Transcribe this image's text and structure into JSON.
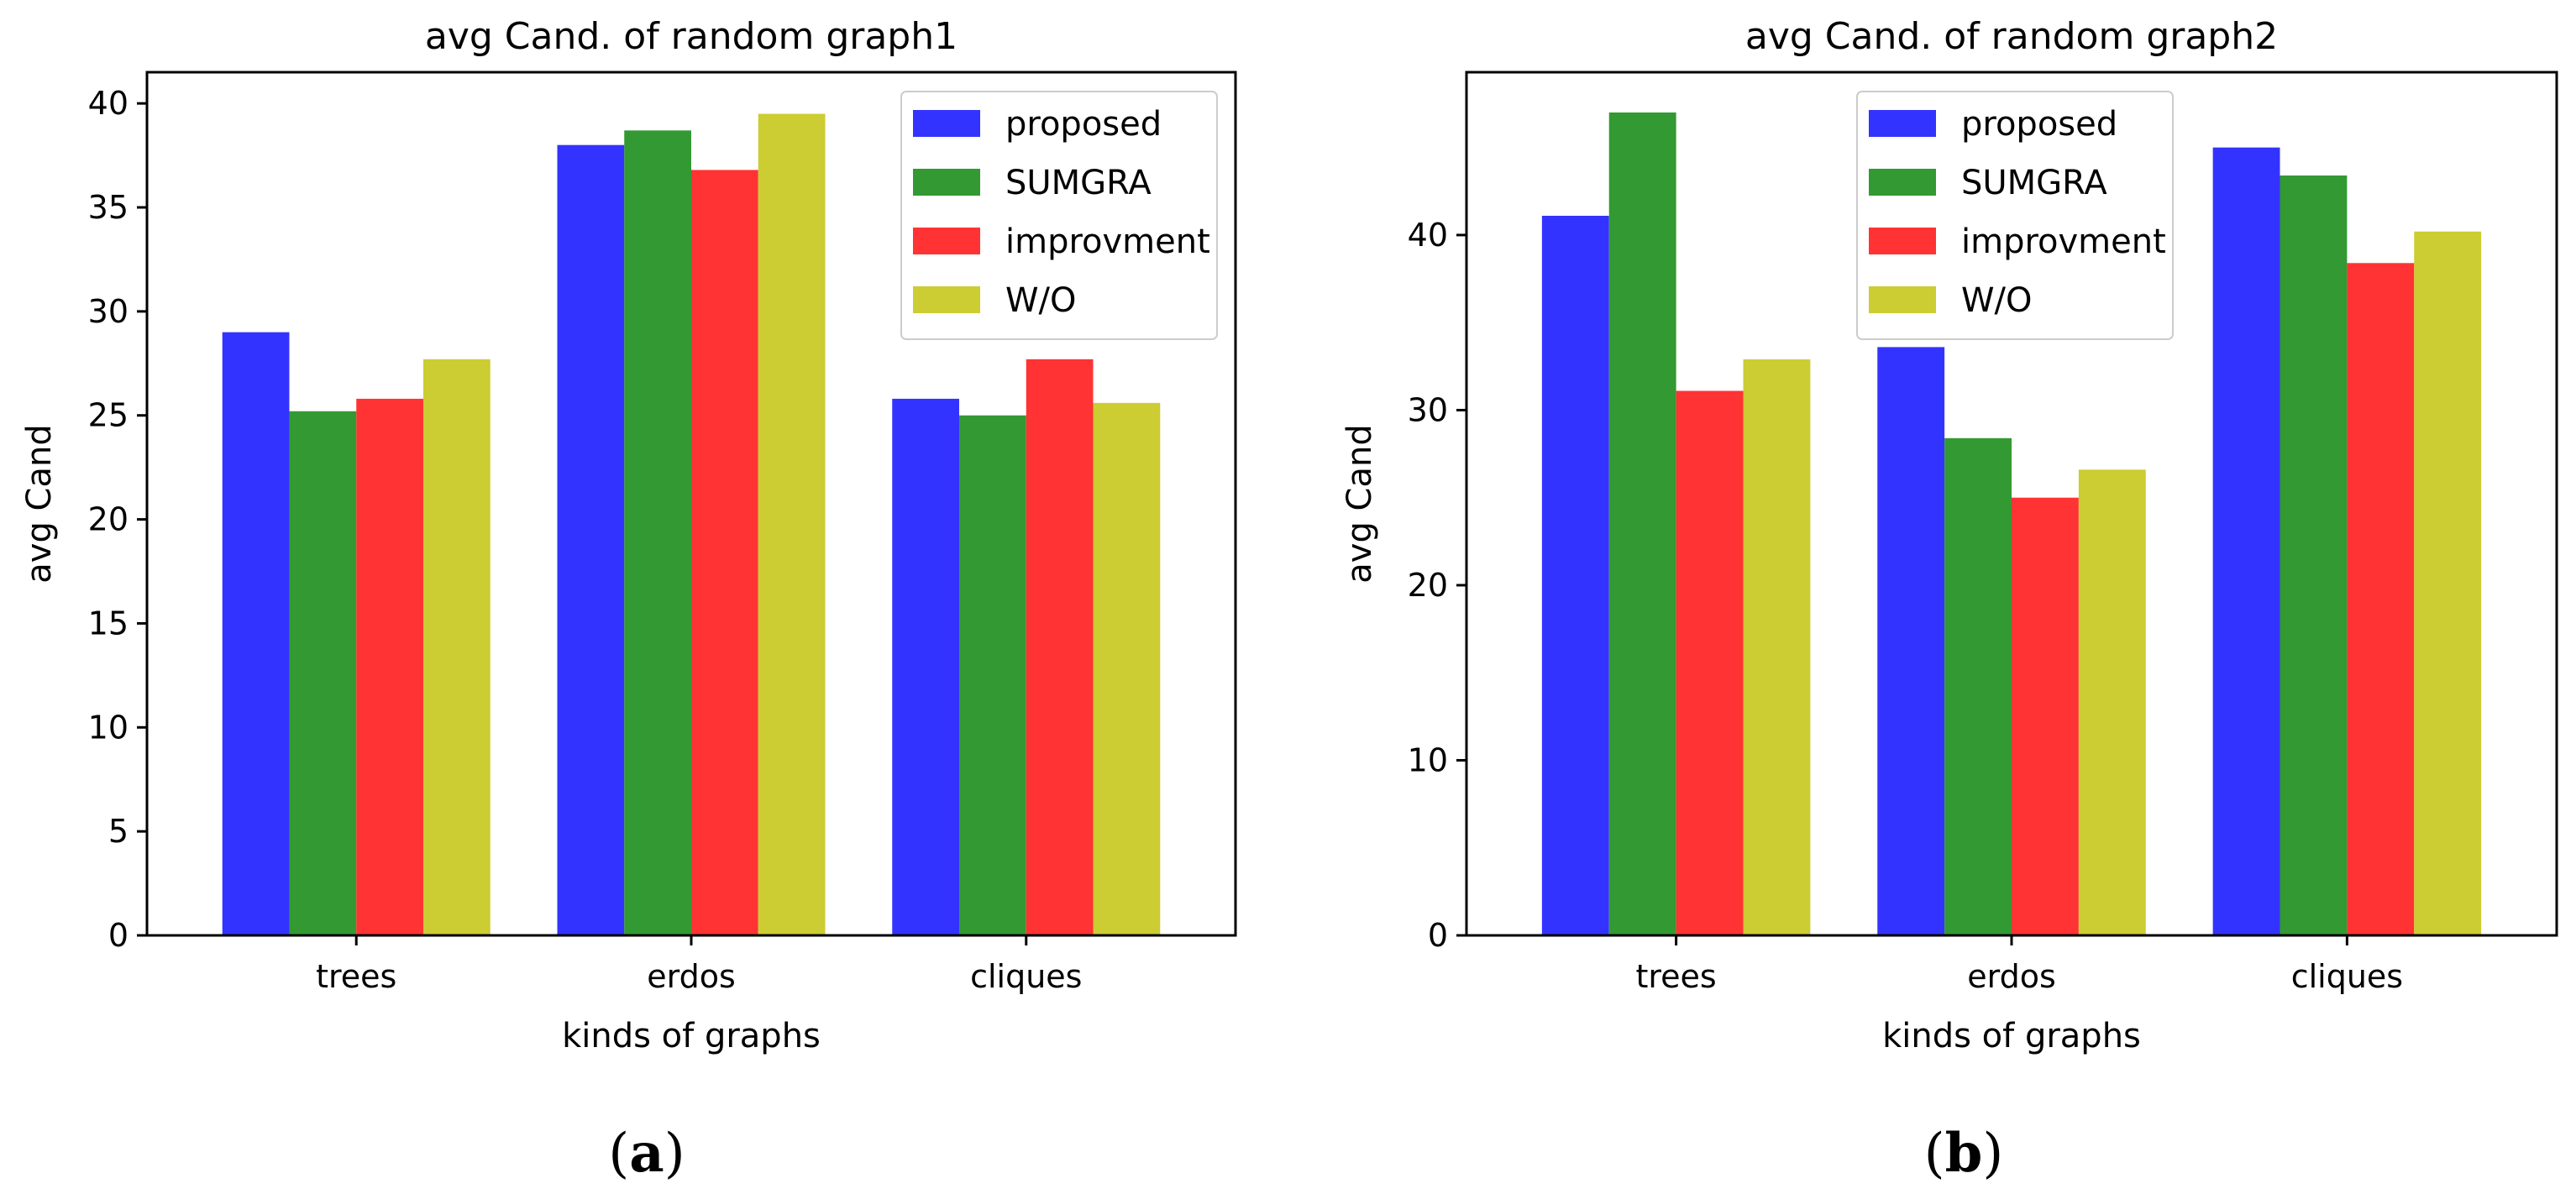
{
  "chart_data": [
    {
      "type": "bar",
      "title": "avg Cand. of random graph1",
      "xlabel": "kinds of graphs",
      "ylabel": "avg Cand",
      "categories": [
        "trees",
        "erdos",
        "cliques"
      ],
      "ylim": [
        0,
        41.5
      ],
      "yticks": [
        0,
        5,
        10,
        15,
        20,
        25,
        30,
        35,
        40
      ],
      "legend_position": "top-right",
      "series": [
        {
          "name": "proposed",
          "color": "#3333ff",
          "values": [
            29.0,
            38.0,
            25.8
          ]
        },
        {
          "name": "SUMGRA",
          "color": "#339933",
          "values": [
            25.2,
            38.7,
            25.0
          ]
        },
        {
          "name": "improvment",
          "color": "#ff3333",
          "values": [
            25.8,
            36.8,
            27.7
          ]
        },
        {
          "name": "W/O",
          "color": "#cccc33",
          "values": [
            27.7,
            39.5,
            25.6
          ]
        }
      ],
      "caption_open": "(",
      "caption_letter": "a",
      "caption_close": ")"
    },
    {
      "type": "bar",
      "title": "avg Cand. of random graph2",
      "xlabel": "kinds of graphs",
      "ylabel": "avg Cand",
      "categories": [
        "trees",
        "erdos",
        "cliques"
      ],
      "ylim": [
        0,
        49.3
      ],
      "yticks": [
        0,
        10,
        20,
        30,
        40
      ],
      "legend_position": "top-center",
      "series": [
        {
          "name": "proposed",
          "color": "#3333ff",
          "values": [
            41.1,
            33.6,
            45.0
          ]
        },
        {
          "name": "SUMGRA",
          "color": "#339933",
          "values": [
            47.0,
            28.4,
            43.4
          ]
        },
        {
          "name": "improvment",
          "color": "#ff3333",
          "values": [
            31.1,
            25.0,
            38.4
          ]
        },
        {
          "name": "W/O",
          "color": "#cccc33",
          "values": [
            32.9,
            26.6,
            40.2
          ]
        }
      ],
      "caption_open": "(",
      "caption_letter": "b",
      "caption_close": ")"
    }
  ]
}
